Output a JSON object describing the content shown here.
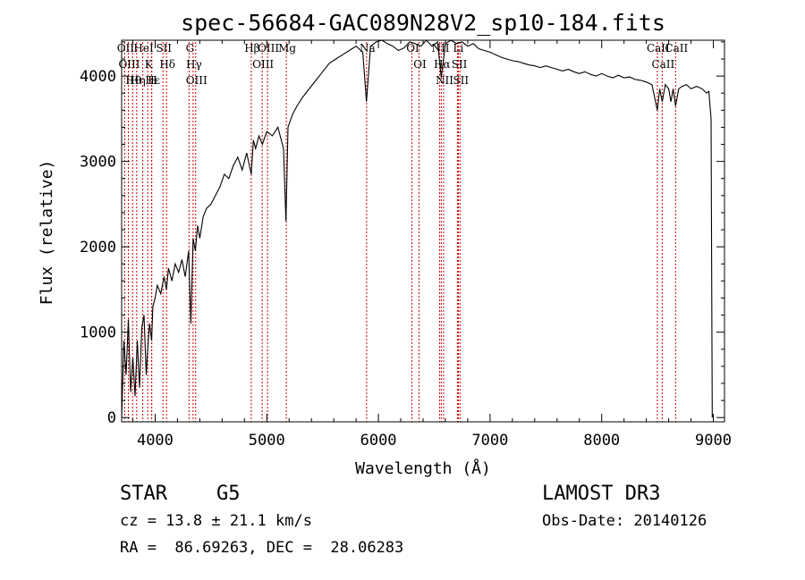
{
  "chart_data": {
    "type": "line",
    "title": "spec-56684-GAC089N28V2_sp10-184.fits",
    "xlabel": "Wavelength (Å)",
    "ylabel": "Flux (relative)",
    "xlim": [
      3700,
      9100
    ],
    "ylim": [
      -50,
      4420
    ],
    "x_ticks": [
      4000,
      5000,
      6000,
      7000,
      8000,
      9000
    ],
    "x_tick_labels": [
      "4000",
      "5000",
      "6000",
      "7000",
      "8000",
      "9000"
    ],
    "y_ticks": [
      0,
      1000,
      2000,
      3000,
      4000
    ],
    "y_tick_labels": [
      "0",
      "1000",
      "2000",
      "3000",
      "4000"
    ],
    "series": [
      {
        "name": "spectrum",
        "x": [
          3700,
          3720,
          3740,
          3760,
          3780,
          3800,
          3820,
          3840,
          3860,
          3880,
          3900,
          3920,
          3933,
          3950,
          3968,
          3980,
          4000,
          4020,
          4050,
          4080,
          4101,
          4120,
          4150,
          4180,
          4210,
          4240,
          4270,
          4300,
          4320,
          4340,
          4360,
          4380,
          4400,
          4430,
          4460,
          4500,
          4540,
          4580,
          4620,
          4660,
          4700,
          4740,
          4780,
          4820,
          4861,
          4880,
          4900,
          4930,
          4960,
          5000,
          5050,
          5100,
          5150,
          5172,
          5190,
          5230,
          5270,
          5320,
          5380,
          5440,
          5500,
          5560,
          5620,
          5680,
          5740,
          5800,
          5860,
          5893,
          5930,
          5980,
          6030,
          6080,
          6130,
          6180,
          6230,
          6280,
          6330,
          6380,
          6430,
          6480,
          6530,
          6563,
          6600,
          6650,
          6700,
          6750,
          6800,
          6850,
          6900,
          6950,
          7000,
          7050,
          7100,
          7150,
          7200,
          7250,
          7300,
          7350,
          7400,
          7450,
          7500,
          7550,
          7600,
          7650,
          7700,
          7750,
          7800,
          7850,
          7900,
          7950,
          8000,
          8050,
          8100,
          8150,
          8200,
          8250,
          8300,
          8350,
          8400,
          8450,
          8498,
          8520,
          8542,
          8570,
          8600,
          8620,
          8640,
          8662,
          8690,
          8720,
          8760,
          8800,
          8850,
          8900,
          8940,
          8960,
          8980,
          8990
        ],
        "values": [
          0,
          900,
          500,
          1150,
          300,
          700,
          250,
          900,
          350,
          1050,
          1200,
          500,
          800,
          1100,
          900,
          1300,
          1400,
          1550,
          1450,
          1650,
          1500,
          1750,
          1600,
          1800,
          1700,
          1850,
          1650,
          1950,
          1100,
          2100,
          1950,
          2250,
          2100,
          2350,
          2450,
          2500,
          2600,
          2700,
          2850,
          2800,
          2950,
          3050,
          2900,
          3100,
          2850,
          3250,
          3150,
          3300,
          3200,
          3350,
          3300,
          3400,
          3150,
          2300,
          3400,
          3550,
          3650,
          3750,
          3850,
          3950,
          4050,
          4150,
          4200,
          4250,
          4300,
          4350,
          4280,
          3700,
          4350,
          4400,
          4420,
          4380,
          4350,
          4300,
          4330,
          4400,
          4380,
          4350,
          4420,
          4350,
          4400,
          3980,
          4380,
          4420,
          4380,
          4400,
          4350,
          4380,
          4320,
          4300,
          4280,
          4250,
          4220,
          4200,
          4180,
          4170,
          4150,
          4130,
          4120,
          4100,
          4120,
          4100,
          4080,
          4060,
          4080,
          4050,
          4030,
          4050,
          4020,
          4000,
          4030,
          4000,
          3980,
          4010,
          3980,
          3990,
          3960,
          3950,
          3930,
          3900,
          3600,
          3850,
          3700,
          3900,
          3850,
          3700,
          3850,
          3650,
          3850,
          3880,
          3900,
          3850,
          3880,
          3850,
          3800,
          3820,
          3500,
          0
        ]
      }
    ],
    "line_markers": [
      {
        "label": "Hθ",
        "wavelength": 3798
      },
      {
        "label": "OII",
        "wavelength": 3727
      },
      {
        "label": "OIII",
        "wavelength": 3760
      },
      {
        "label": "K",
        "wavelength": 3934
      },
      {
        "label": "H",
        "wavelength": 3968
      },
      {
        "label": "Hε",
        "wavelength": 3970
      },
      {
        "label": "Hη",
        "wavelength": 3835
      },
      {
        "label": "HeI",
        "wavelength": 3889
      },
      {
        "label": "SII",
        "wavelength": 4070
      },
      {
        "label": "Hδ",
        "wavelength": 4102
      },
      {
        "label": "OIII",
        "wavelength": 4363
      },
      {
        "label": "Hγ",
        "wavelength": 4340
      },
      {
        "label": "G",
        "wavelength": 4304
      },
      {
        "label": "Hβ",
        "wavelength": 4861
      },
      {
        "label": "OIII",
        "wavelength": 4959
      },
      {
        "label": "OIII",
        "wavelength": 5007
      },
      {
        "label": "Mg",
        "wavelength": 5175
      },
      {
        "label": "Na",
        "wavelength": 5894
      },
      {
        "label": "OI",
        "wavelength": 6300
      },
      {
        "label": "OI",
        "wavelength": 6364
      },
      {
        "label": "NII",
        "wavelength": 6548
      },
      {
        "label": "Hα",
        "wavelength": 6563
      },
      {
        "label": "NII",
        "wavelength": 6584
      },
      {
        "label": "Li",
        "wavelength": 6708
      },
      {
        "label": "SII",
        "wavelength": 6717
      },
      {
        "label": "SII",
        "wavelength": 6731
      },
      {
        "label": "CaII",
        "wavelength": 8498
      },
      {
        "label": "CaII",
        "wavelength": 8542
      },
      {
        "label": "CaII",
        "wavelength": 8662
      }
    ],
    "marker_color": "#cc0000",
    "line_color": "#000000"
  },
  "info": {
    "class_label": "STAR",
    "subclass_label": "G5",
    "survey": "LAMOST DR3",
    "cz_line": "cz = 13.8 ± 21.1 km/s",
    "obs_date": "Obs-Date: 20140126",
    "coords": "RA =  86.69263, DEC =  28.06283"
  }
}
